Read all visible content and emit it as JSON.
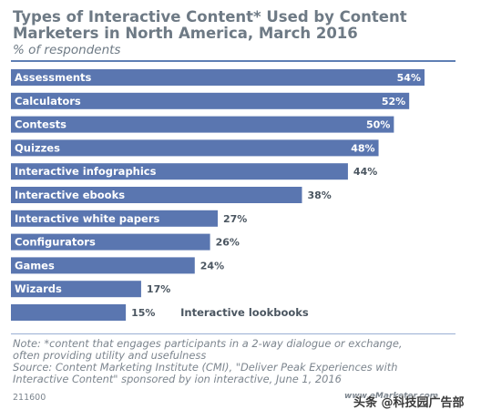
{
  "header": {
    "title_line1": "Types of Interactive Content* Used by Content",
    "title_line2": "Marketers in North America, March 2016",
    "subtitle": "% of respondents"
  },
  "chart_data": {
    "type": "bar",
    "orientation": "horizontal",
    "title": "Types of Interactive Content* Used by Content Marketers in North America, March 2016",
    "subtitle": "% of respondents",
    "categories": [
      "Assessments",
      "Calculators",
      "Contests",
      "Quizzes",
      "Interactive infographics",
      "Interactive ebooks",
      "Interactive white papers",
      "Configurators",
      "Games",
      "Wizards",
      "Interactive lookbooks"
    ],
    "values": [
      54,
      52,
      50,
      48,
      44,
      38,
      27,
      26,
      24,
      17,
      15
    ],
    "value_labels": [
      "54%",
      "52%",
      "50%",
      "48%",
      "44%",
      "38%",
      "27%",
      "26%",
      "24%",
      "17%",
      "15%"
    ],
    "xlim": [
      0,
      54
    ],
    "bar_color": "#5a76b0",
    "grid": false,
    "legend": "none"
  },
  "footer": {
    "note_lines": [
      "Note: *content that engages participants in a 2-way dialogue or exchange,",
      "often providing utility and usefulness",
      "Source: Content Marketing Institute (CMI), \"Deliver Peak Experiences with",
      "Interactive Content\" sponsored by ion interactive, June 1, 2016"
    ],
    "chart_id": "211600",
    "site": "www.eMarketer.com",
    "watermark": "头条 @科技园广告部"
  }
}
